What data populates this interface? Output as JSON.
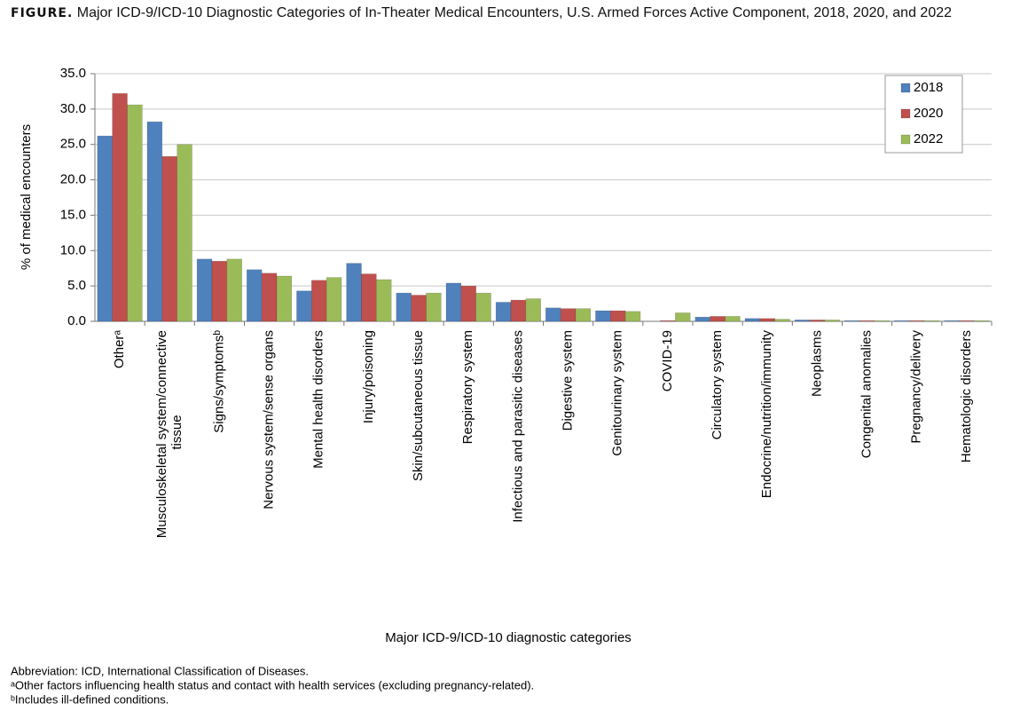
{
  "chart_data": {
    "type": "bar",
    "figure_label": "FIGURE.",
    "title": "Major ICD-9/ICD-10 Diagnostic Categories of In-Theater Medical Encounters, U.S. Armed Forces Active Component, 2018, 2020, and 2022",
    "x_label": "Major ICD-9/ICD-10 diagnostic categories",
    "y_label": "% of medical encounters",
    "categories": [
      "Otherᵃ",
      "Musculoskeletal system/connective tissue",
      "Signs/symptomsᵇ",
      "Nervous system/sense organs",
      "Mental health disorders",
      "Injury/poisoning",
      "Skin/subcutaneous tissue",
      "Respiratory system",
      "Infectious and parasitic diseases",
      "Digestive system",
      "Genitourinary system",
      "COVID-19",
      "Circulatory system",
      "Endocrine/nutrition/immunity",
      "Neoplasms",
      "Congenital anomalies",
      "Pregnancy/delivery",
      "Hematologic disorders"
    ],
    "series": [
      {
        "name": "2018",
        "color": "#4f81bd",
        "values": [
          26.2,
          28.2,
          8.8,
          7.3,
          4.3,
          8.2,
          4.0,
          5.4,
          2.7,
          1.9,
          1.5,
          0,
          0.6,
          0.4,
          0.2,
          0.1,
          0.1,
          0.1
        ]
      },
      {
        "name": "2020",
        "color": "#c0504d",
        "values": [
          32.2,
          23.3,
          8.5,
          6.8,
          5.8,
          6.7,
          3.7,
          5.0,
          3.0,
          1.8,
          1.5,
          0.1,
          0.7,
          0.4,
          0.2,
          0.1,
          0.1,
          0.1
        ]
      },
      {
        "name": "2022",
        "color": "#9bbb59",
        "values": [
          30.6,
          25.0,
          8.8,
          6.4,
          6.2,
          5.9,
          4.0,
          4.0,
          3.2,
          1.8,
          1.4,
          1.2,
          0.7,
          0.3,
          0.2,
          0.1,
          0.1,
          0.1
        ]
      }
    ],
    "ylim": [
      0,
      35
    ],
    "yticks": [
      {
        "value": 0,
        "label": "0.0"
      },
      {
        "value": 5,
        "label": "5.0"
      },
      {
        "value": 10,
        "label": "10.0"
      },
      {
        "value": 15,
        "label": "15.0"
      },
      {
        "value": 20,
        "label": "20.0"
      },
      {
        "value": 25,
        "label": "25.0"
      },
      {
        "value": 30,
        "label": "30.0"
      },
      {
        "value": 35,
        "label": "35.0"
      }
    ],
    "grid": true,
    "legend": "top-right",
    "footnotes": [
      "Abbreviation: ICD, International Classification of Diseases.",
      "ᵃOther factors influencing health status and contact with health services (excluding pregnancy-related).",
      "ᵇIncludes ill-defined conditions."
    ]
  }
}
